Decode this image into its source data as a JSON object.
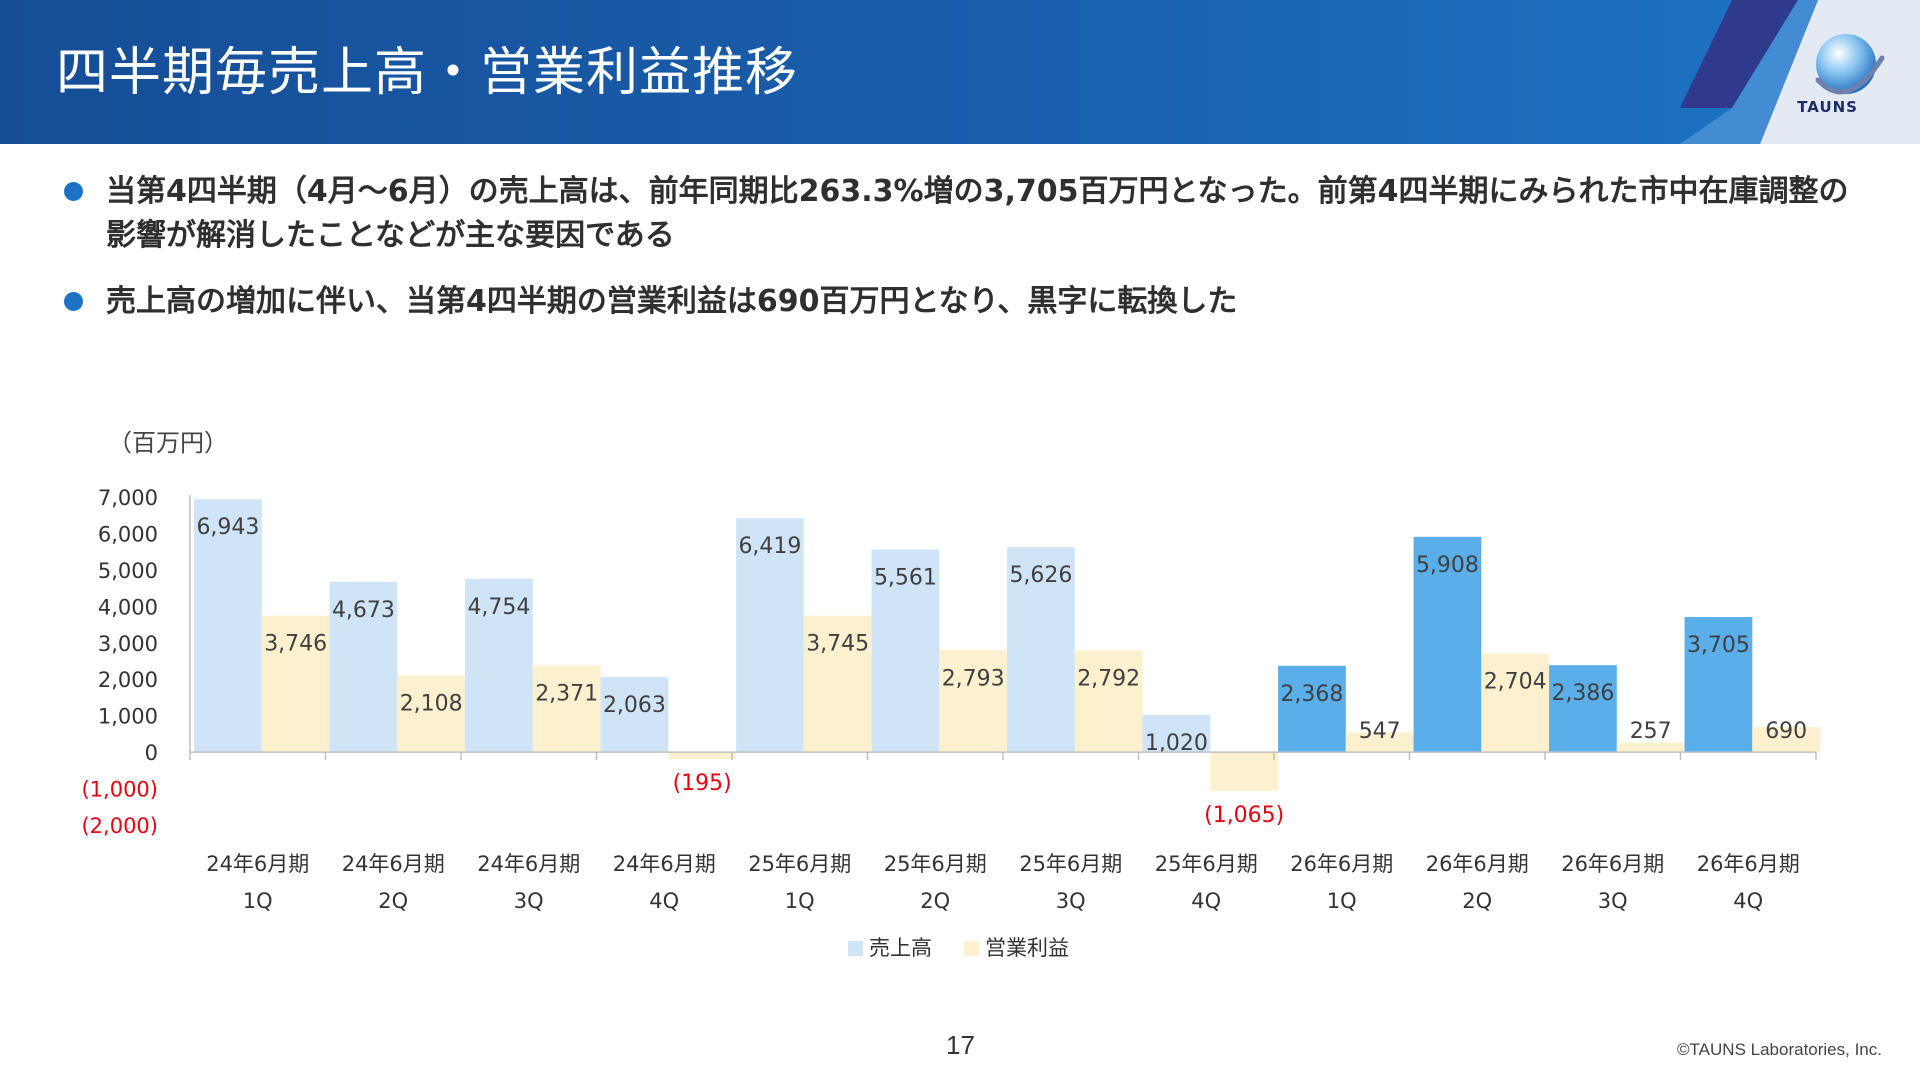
{
  "header": {
    "title": "四半期毎売上高・営業利益推移",
    "logo_text": "TAUNS"
  },
  "bullets": [
    {
      "text": "当第4四半期（4月～6月）の売上高は、前年同期比263.3%増の3,705百万円となった。前第4四半期にみられた市中在庫調整の影響が解消したことなどが主な要因である"
    },
    {
      "text": "売上高の増加に伴い、当第4四半期の営業利益は690百万円となり、黒字に転換した"
    }
  ],
  "chart_data": {
    "type": "bar",
    "unit_label": "（百万円）",
    "categories": [
      [
        "24年6月期",
        "1Q"
      ],
      [
        "24年6月期",
        "2Q"
      ],
      [
        "24年6月期",
        "3Q"
      ],
      [
        "24年6月期",
        "4Q"
      ],
      [
        "25年6月期",
        "1Q"
      ],
      [
        "25年6月期",
        "2Q"
      ],
      [
        "25年6月期",
        "3Q"
      ],
      [
        "25年6月期",
        "4Q"
      ],
      [
        "26年6月期",
        "1Q"
      ],
      [
        "26年6月期",
        "2Q"
      ],
      [
        "26年6月期",
        "3Q"
      ],
      [
        "26年6月期",
        "4Q"
      ]
    ],
    "series": [
      {
        "name": "売上高",
        "values": [
          6943,
          4673,
          4754,
          2063,
          6419,
          5561,
          5626,
          1020,
          2368,
          5908,
          2386,
          3705
        ],
        "labels": [
          "6,943",
          "4,673",
          "4,754",
          "2,063",
          "6,419",
          "5,561",
          "5,626",
          "1,020",
          "2,368",
          "5,908",
          "2,386",
          "3,705"
        ],
        "color_past": "#cfe5f7",
        "color_current": "#5aaeea",
        "current_from_index": 8
      },
      {
        "name": "営業利益",
        "values": [
          3746,
          2108,
          2371,
          -195,
          3745,
          2793,
          2792,
          -1065,
          547,
          2704,
          257,
          690
        ],
        "labels": [
          "3,746",
          "2,108",
          "2,371",
          "(195)",
          "3,745",
          "2,793",
          "2,792",
          "(1,065)",
          "547",
          "2,704",
          "257",
          "690"
        ],
        "color": "#fdf0cf"
      }
    ],
    "y_ticks": [
      {
        "value": 7000,
        "label": "7,000"
      },
      {
        "value": 6000,
        "label": "6,000"
      },
      {
        "value": 5000,
        "label": "5,000"
      },
      {
        "value": 4000,
        "label": "4,000"
      },
      {
        "value": 3000,
        "label": "3,000"
      },
      {
        "value": 2000,
        "label": "2,000"
      },
      {
        "value": 1000,
        "label": "1,000"
      },
      {
        "value": 0,
        "label": "0"
      },
      {
        "value": -1000,
        "label": "(1,000)"
      },
      {
        "value": -2000,
        "label": "(2,000)"
      }
    ],
    "ylim": [
      -2000,
      7000
    ],
    "negative_color": "#e60012",
    "legend_position": "bottom-center"
  },
  "footer": {
    "page_number": "17",
    "copyright": "©TAUNS Laboratories, Inc."
  }
}
